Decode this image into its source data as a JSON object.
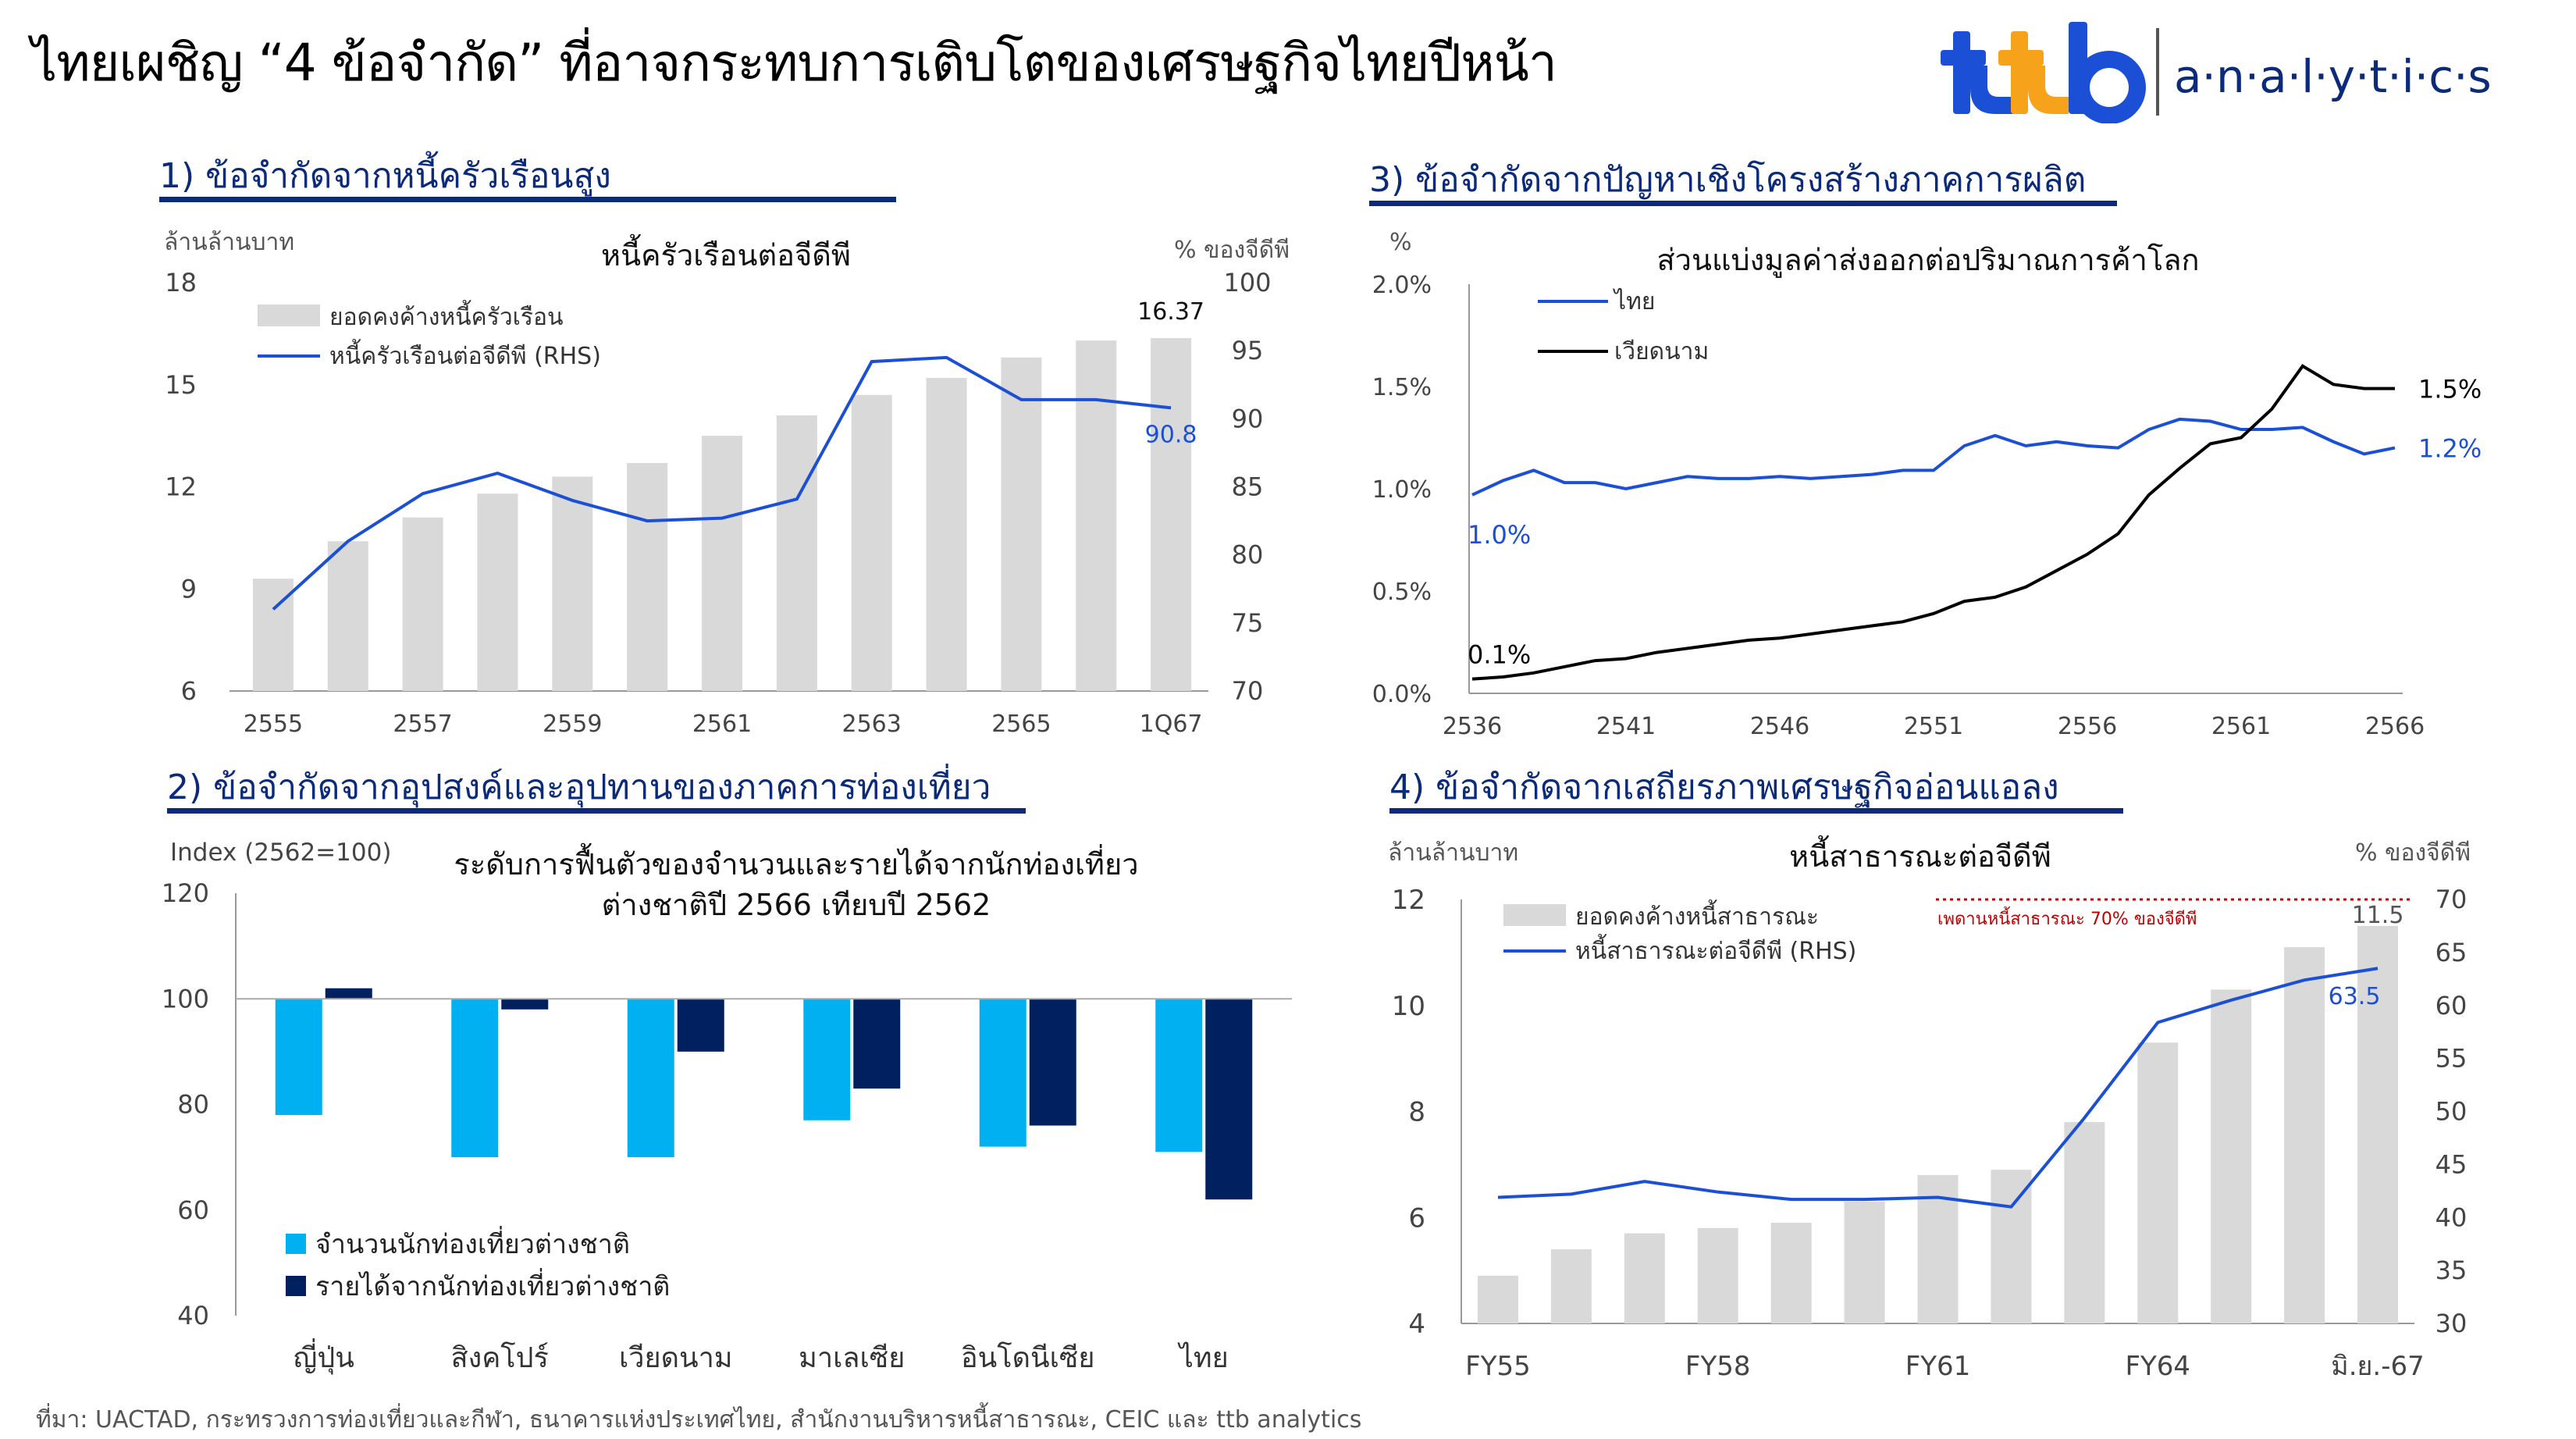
{
  "header": {
    "title": "ไทยเผชิญ “4 ข้อจำกัด” ที่อาจกระทบการเติบโตของเศรษฐกิจไทยปีหน้า",
    "brand_mark": "ttb",
    "brand_text": "a·n·a·l·y·t·i·c·s",
    "colors": {
      "brand_blue": "#1a4fd6",
      "brand_orange": "#f7a21b",
      "navy": "#0b2a7a"
    }
  },
  "panels": {
    "p1": {
      "title": "1) ข้อจำกัดจากหนี้ครัวเรือนสูง"
    },
    "p2": {
      "title": "2) ข้อจำกัดจากอุปสงค์และอุปทานของภาคการท่องเที่ยว"
    },
    "p3": {
      "title": "3) ข้อจำกัดจากปัญหาเชิงโครงสร้างภาคการผลิต"
    },
    "p4": {
      "title": "4) ข้อจำกัดจากเสถียรภาพเศรษฐกิจอ่อนแอลง"
    }
  },
  "chart_data": [
    {
      "id": "household-debt",
      "type": "bar",
      "title": "หนี้ครัวเรือนต่อจีดีพี",
      "ylabel": "ล้านล้านบาท",
      "y2label": "% ของจีดีพี",
      "ylim": [
        6,
        18
      ],
      "yticks": [
        6,
        9,
        12,
        15,
        18
      ],
      "y2lim": [
        70,
        100
      ],
      "y2ticks": [
        70,
        75,
        80,
        85,
        90,
        95,
        100
      ],
      "categories": [
        "2555",
        "2556",
        "2557",
        "2558",
        "2559",
        "2560",
        "2561",
        "2562",
        "2563",
        "2564",
        "2565",
        "2566",
        "1Q67"
      ],
      "x_tick_labels": [
        "2555",
        "2557",
        "2559",
        "2561",
        "2563",
        "2565",
        "1Q67"
      ],
      "legend_position": "top-left",
      "series": [
        {
          "name": "ยอดคงค้างหนี้ครัวเรือน",
          "type": "bar",
          "axis": "left",
          "color": "#d9d9d9",
          "values": [
            9.3,
            10.4,
            11.1,
            11.8,
            12.3,
            12.7,
            13.5,
            14.1,
            14.7,
            15.2,
            15.8,
            16.3,
            16.37
          ]
        },
        {
          "name": "หนี้ครัวเรือนต่อจีดีพี (RHS)",
          "type": "line",
          "axis": "right",
          "color": "#1a4fd6",
          "values": [
            76.0,
            81.0,
            84.5,
            86.0,
            84.0,
            82.5,
            82.7,
            84.1,
            94.2,
            94.5,
            91.4,
            91.4,
            90.8
          ]
        }
      ],
      "annotations": [
        {
          "text": "16.37",
          "series": 0,
          "index": 12,
          "color": "#111111"
        },
        {
          "text": "90.8",
          "series": 1,
          "index": 12,
          "color": "#1a4fd6"
        }
      ]
    },
    {
      "id": "tourism-recovery",
      "type": "bar",
      "title": "ระดับการฟื้นตัวของจำนวนและรายได้จากนักท่องเที่ยว",
      "title_line2": "ต่างชาติปี 2566 เทียบปี 2562",
      "ylabel": "Index (2562=100)",
      "ylim": [
        40,
        120
      ],
      "yticks": [
        40,
        60,
        80,
        100,
        120
      ],
      "baseline": 100,
      "categories": [
        "ญี่ปุ่น",
        "สิงคโปร์",
        "เวียดนาม",
        "มาเลเซีย",
        "อินโดนีเซีย",
        "ไทย"
      ],
      "legend_position": "bottom-left",
      "series": [
        {
          "name": "จำนวนนักท่องเที่ยวต่างชาติ",
          "color": "#00b0f0",
          "values": [
            78,
            70,
            70,
            77,
            72,
            71
          ]
        },
        {
          "name": "รายได้จากนักท่องเที่ยวต่างชาติ",
          "color": "#002060",
          "values": [
            102,
            98,
            90,
            83,
            76,
            62
          ]
        }
      ]
    },
    {
      "id": "export-share",
      "type": "line",
      "title": "ส่วนแบ่งมูลค่าส่งออกต่อปริมาณการค้าโลก",
      "ylabel": "%",
      "ylim": [
        0,
        2.0
      ],
      "yticks": [
        0,
        0.5,
        1.0,
        1.5,
        2.0
      ],
      "ytick_labels": [
        "0.0%",
        "0.5%",
        "1.0%",
        "1.5%",
        "2.0%"
      ],
      "xlim": [
        2536,
        2566
      ],
      "x_tick_labels": [
        "2536",
        "2541",
        "2546",
        "2551",
        "2556",
        "2561",
        "2566"
      ],
      "x": [
        2536,
        2537,
        2538,
        2539,
        2540,
        2541,
        2542,
        2543,
        2544,
        2545,
        2546,
        2547,
        2548,
        2549,
        2550,
        2551,
        2552,
        2553,
        2554,
        2555,
        2556,
        2557,
        2558,
        2559,
        2560,
        2561,
        2562,
        2563,
        2564,
        2565,
        2566
      ],
      "legend_position": "top-left",
      "series": [
        {
          "name": "ไทย",
          "color": "#1a4fd6",
          "values": [
            0.97,
            1.04,
            1.09,
            1.03,
            1.03,
            1.0,
            1.03,
            1.06,
            1.05,
            1.05,
            1.06,
            1.05,
            1.06,
            1.07,
            1.09,
            1.09,
            1.21,
            1.26,
            1.21,
            1.23,
            1.21,
            1.2,
            1.29,
            1.34,
            1.33,
            1.29,
            1.29,
            1.3,
            1.23,
            1.17,
            1.2
          ]
        },
        {
          "name": "เวียดนาม",
          "color": "#000000",
          "values": [
            0.07,
            0.08,
            0.1,
            0.13,
            0.16,
            0.17,
            0.2,
            0.22,
            0.24,
            0.26,
            0.27,
            0.29,
            0.31,
            0.33,
            0.35,
            0.39,
            0.45,
            0.47,
            0.52,
            0.6,
            0.68,
            0.78,
            0.97,
            1.1,
            1.22,
            1.25,
            1.39,
            1.6,
            1.51,
            1.49,
            1.49
          ]
        }
      ],
      "annotations": [
        {
          "text": "1.0%",
          "series": 0,
          "index": 0,
          "color": "#1a4fd6"
        },
        {
          "text": "0.1%",
          "series": 1,
          "index": 0,
          "color": "#000000"
        },
        {
          "text": "1.5%",
          "series": 1,
          "index": 30,
          "color": "#000000"
        },
        {
          "text": "1.2%",
          "series": 0,
          "index": 30,
          "color": "#1a4fd6"
        }
      ]
    },
    {
      "id": "public-debt",
      "type": "bar",
      "title": "หนี้สาธารณะต่อจีดีพี",
      "ylabel": "ล้านล้านบาท",
      "y2label": "% ของจีดีพี",
      "ylim": [
        4,
        12
      ],
      "yticks": [
        4,
        6,
        8,
        10,
        12
      ],
      "y2lim": [
        30,
        70
      ],
      "y2ticks": [
        30,
        35,
        40,
        45,
        50,
        55,
        60,
        65,
        70
      ],
      "categories": [
        "FY55",
        "FY56",
        "FY57",
        "FY58",
        "FY59",
        "FY60",
        "FY61",
        "FY62",
        "FY63",
        "FY64",
        "FY65",
        "FY66",
        "มิ.ย.-67"
      ],
      "x_tick_labels": [
        "FY55",
        "FY58",
        "FY61",
        "FY64",
        "มิ.ย.-67"
      ],
      "legend_position": "top-left",
      "ceiling": {
        "label": "เพดานหนี้สาธารณะ 70% ของจีดีพี",
        "value": 70,
        "color": "#c00000"
      },
      "series": [
        {
          "name": "ยอดคงค้างหนี้สาธารณะ",
          "type": "bar",
          "axis": "left",
          "color": "#d9d9d9",
          "values": [
            4.9,
            5.4,
            5.7,
            5.8,
            5.9,
            6.3,
            6.8,
            6.9,
            7.8,
            9.3,
            10.3,
            11.1,
            11.5
          ]
        },
        {
          "name": "หนี้สาธารณะต่อจีดีพี (RHS)",
          "type": "line",
          "axis": "right",
          "color": "#1a4fd6",
          "values": [
            41.9,
            42.2,
            43.4,
            42.4,
            41.7,
            41.7,
            41.9,
            41.0,
            49.4,
            58.4,
            60.5,
            62.4,
            63.5
          ]
        }
      ],
      "annotations": [
        {
          "text": "11.5",
          "series": 0,
          "index": 12,
          "color": "#555555"
        },
        {
          "text": "63.5",
          "series": 1,
          "index": 12,
          "color": "#1a4fd6"
        }
      ]
    }
  ],
  "source": "ที่มา: UACTAD, กระทรวงการท่องเที่ยวและกีฬา, ธนาคารแห่งประเทศไทย, สำนักงานบริหารหนี้สาธารณะ, CEIC และ ttb analytics"
}
